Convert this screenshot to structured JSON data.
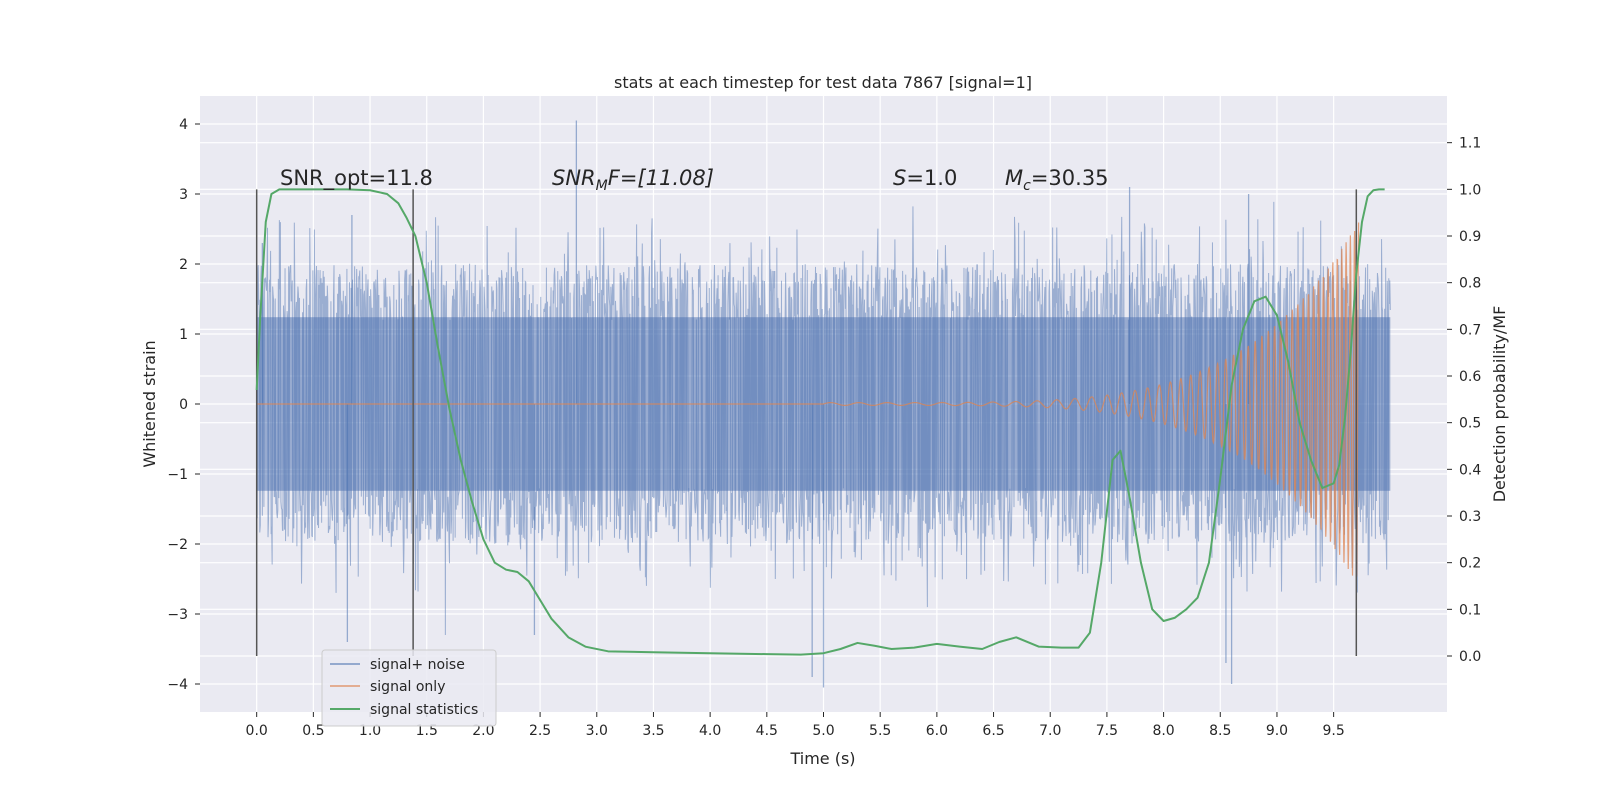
{
  "chart_data": {
    "type": "line",
    "title": "stats at each timestep for test data 7867 [signal=1]",
    "xlabel": "Time (s)",
    "ylabel": "Whitened strain",
    "ylabel_right": "Detection probability/MF",
    "xlim": [
      -0.5,
      10.5
    ],
    "ylim": [
      -4.4,
      4.4
    ],
    "ylim_right": [
      -0.12,
      1.2
    ],
    "x_ticks": [
      "0.0",
      "0.5",
      "1.0",
      "1.5",
      "2.0",
      "2.5",
      "3.0",
      "3.5",
      "4.0",
      "4.5",
      "5.0",
      "5.5",
      "6.0",
      "6.5",
      "7.0",
      "7.5",
      "8.0",
      "8.5",
      "9.0",
      "9.5"
    ],
    "y_ticks": [
      "4",
      "3",
      "2",
      "1",
      "0",
      "−1",
      "−2",
      "−3",
      "−4"
    ],
    "y_ticks_right": [
      "1.1",
      "1.0",
      "0.9",
      "0.8",
      "0.7",
      "0.6",
      "0.5",
      "0.4",
      "0.3",
      "0.2",
      "0.1",
      "0.0"
    ],
    "grid": true,
    "legend_position": "lower-left",
    "annotations": {
      "snr_opt": "SNR_opt=11.8",
      "snr_mf_sym": "SNR",
      "snr_mf_sub": "M",
      "snr_mf_tail": "F=[11.08]",
      "s_sym": "S",
      "s_tail": "=1.0",
      "mc_sym": "M",
      "mc_sub": "c",
      "mc_tail": "=30.35"
    },
    "vertical_markers_x": [
      0.0,
      1.38,
      9.7
    ],
    "series": [
      {
        "name": "signal+ noise",
        "color": "#4c72b0",
        "axis": "left",
        "note_style": "dense noise band",
        "x_range": [
          0.0,
          10.0
        ],
        "band_envelope": [
          -2.0,
          2.0
        ],
        "values_sample_peaks": [
          [
            0.05,
            2.3
          ],
          [
            0.8,
            -3.4
          ],
          [
            0.84,
            2.7
          ],
          [
            2.82,
            4.05
          ],
          [
            2.45,
            -3.3
          ],
          [
            4.9,
            -3.9
          ],
          [
            5.0,
            -4.05
          ],
          [
            7.7,
            3.1
          ],
          [
            8.6,
            -4.0
          ],
          [
            8.55,
            -3.7
          ],
          [
            8.75,
            3.0
          ]
        ]
      },
      {
        "name": "signal only",
        "color": "#dd8452",
        "axis": "left",
        "chirp": {
          "start_x": 5.0,
          "end_x": 9.72,
          "start_amp": 0.02,
          "end_amp": 2.6,
          "start_freq": 4,
          "end_freq": 28
        }
      },
      {
        "name": "signal statistics",
        "color": "#55a868",
        "axis": "right",
        "x": [
          0.0,
          0.03,
          0.08,
          0.13,
          0.2,
          0.3,
          0.45,
          0.6,
          0.8,
          1.0,
          1.15,
          1.25,
          1.32,
          1.4,
          1.5,
          1.6,
          1.7,
          1.8,
          1.9,
          2.0,
          2.1,
          2.2,
          2.3,
          2.4,
          2.5,
          2.6,
          2.75,
          2.9,
          3.1,
          3.5,
          4.0,
          4.5,
          4.8,
          5.0,
          5.15,
          5.3,
          5.45,
          5.6,
          5.8,
          6.0,
          6.2,
          6.4,
          6.55,
          6.7,
          6.9,
          7.1,
          7.25,
          7.35,
          7.45,
          7.55,
          7.62,
          7.7,
          7.8,
          7.9,
          8.0,
          8.1,
          8.2,
          8.3,
          8.4,
          8.5,
          8.6,
          8.7,
          8.8,
          8.9,
          9.0,
          9.1,
          9.2,
          9.3,
          9.4,
          9.5,
          9.55,
          9.6,
          9.65,
          9.7,
          9.75,
          9.8,
          9.85,
          9.9,
          9.95
        ],
        "values": [
          0.57,
          0.72,
          0.93,
          0.99,
          1.0,
          1.0,
          1.0,
          1.0,
          1.0,
          0.998,
          0.99,
          0.97,
          0.94,
          0.9,
          0.8,
          0.66,
          0.53,
          0.42,
          0.33,
          0.25,
          0.2,
          0.185,
          0.18,
          0.16,
          0.12,
          0.08,
          0.04,
          0.02,
          0.01,
          0.008,
          0.006,
          0.004,
          0.003,
          0.006,
          0.015,
          0.028,
          0.022,
          0.015,
          0.018,
          0.026,
          0.02,
          0.015,
          0.03,
          0.04,
          0.02,
          0.018,
          0.018,
          0.05,
          0.2,
          0.42,
          0.44,
          0.34,
          0.2,
          0.1,
          0.075,
          0.082,
          0.1,
          0.125,
          0.2,
          0.38,
          0.58,
          0.7,
          0.76,
          0.77,
          0.73,
          0.63,
          0.5,
          0.42,
          0.36,
          0.37,
          0.41,
          0.51,
          0.65,
          0.82,
          0.93,
          0.985,
          0.998,
          1.0,
          1.0
        ]
      }
    ]
  }
}
